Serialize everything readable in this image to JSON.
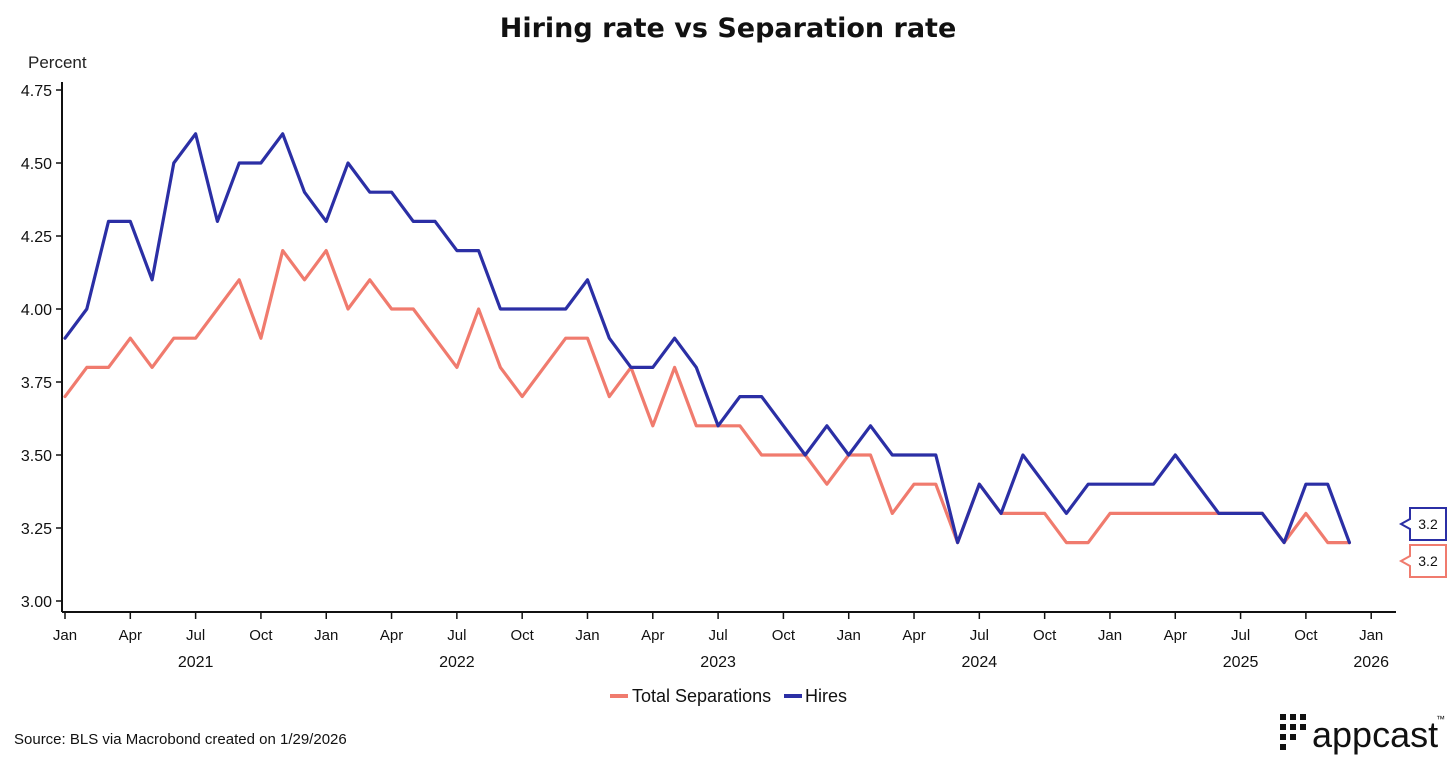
{
  "chart_data": {
    "type": "line",
    "title": "Hiring rate vs Separation rate",
    "ylabel": "Percent",
    "xlabel": "",
    "ylim": [
      3.0,
      4.75
    ],
    "yticks": [
      "3.00",
      "3.25",
      "3.50",
      "3.75",
      "4.00",
      "4.25",
      "4.50",
      "4.75"
    ],
    "x_start": "2021-01",
    "x_end": "2026-01",
    "x_month_ticks": [
      {
        "index": 0,
        "label": "Jan"
      },
      {
        "index": 3,
        "label": "Apr"
      },
      {
        "index": 6,
        "label": "Jul"
      },
      {
        "index": 9,
        "label": "Oct"
      },
      {
        "index": 12,
        "label": "Jan"
      },
      {
        "index": 15,
        "label": "Apr"
      },
      {
        "index": 18,
        "label": "Jul"
      },
      {
        "index": 21,
        "label": "Oct"
      },
      {
        "index": 24,
        "label": "Jan"
      },
      {
        "index": 27,
        "label": "Apr"
      },
      {
        "index": 30,
        "label": "Jul"
      },
      {
        "index": 33,
        "label": "Oct"
      },
      {
        "index": 36,
        "label": "Jan"
      },
      {
        "index": 39,
        "label": "Apr"
      },
      {
        "index": 42,
        "label": "Jul"
      },
      {
        "index": 45,
        "label": "Oct"
      },
      {
        "index": 48,
        "label": "Jan"
      },
      {
        "index": 51,
        "label": "Apr"
      },
      {
        "index": 54,
        "label": "Jul"
      },
      {
        "index": 57,
        "label": "Oct"
      },
      {
        "index": 60,
        "label": "Jan"
      }
    ],
    "x_year_labels": [
      {
        "index": 6,
        "label": "2021"
      },
      {
        "index": 18,
        "label": "2022"
      },
      {
        "index": 30,
        "label": "2023"
      },
      {
        "index": 42,
        "label": "2024"
      },
      {
        "index": 54,
        "label": "2025"
      },
      {
        "index": 60,
        "label": "2026"
      }
    ],
    "series": [
      {
        "name": "Hires",
        "color": "#2b2fa5",
        "values": [
          3.9,
          4.0,
          4.3,
          4.3,
          4.1,
          4.5,
          4.6,
          4.3,
          4.5,
          4.5,
          4.6,
          4.4,
          4.3,
          4.5,
          4.4,
          4.4,
          4.3,
          4.3,
          4.2,
          4.2,
          4.0,
          4.0,
          4.0,
          4.0,
          4.1,
          3.9,
          3.8,
          3.8,
          3.9,
          3.8,
          3.6,
          3.7,
          3.7,
          3.6,
          3.5,
          3.6,
          3.5,
          3.6,
          3.5,
          3.5,
          3.5,
          3.2,
          3.4,
          3.3,
          3.5,
          3.4,
          3.3,
          3.4,
          3.4,
          3.4,
          3.4,
          3.5,
          3.4,
          3.3,
          3.3,
          3.3,
          3.2,
          3.4,
          3.4,
          3.2
        ],
        "last_label": "3.2"
      },
      {
        "name": "Total Separations",
        "color": "#f07b6e",
        "values": [
          3.7,
          3.8,
          3.8,
          3.9,
          3.8,
          3.9,
          3.9,
          4.0,
          4.1,
          3.9,
          4.2,
          4.1,
          4.2,
          4.0,
          4.1,
          4.0,
          4.0,
          3.9,
          3.8,
          4.0,
          3.8,
          3.7,
          3.8,
          3.9,
          3.9,
          3.7,
          3.8,
          3.6,
          3.8,
          3.6,
          3.6,
          3.6,
          3.5,
          3.5,
          3.5,
          3.4,
          3.5,
          3.5,
          3.3,
          3.4,
          3.4,
          3.2,
          3.4,
          3.3,
          3.3,
          3.3,
          3.2,
          3.2,
          3.3,
          3.3,
          3.3,
          3.3,
          3.3,
          3.3,
          3.3,
          3.3,
          3.2,
          3.3,
          3.2,
          3.2
        ],
        "last_label": "3.2"
      }
    ],
    "legend": [
      "Total Separations",
      "Hires"
    ],
    "legend_position": "bottom-center"
  },
  "footer": {
    "source": "Source: BLS via Macrobond created on 1/29/2026",
    "brand": "appcast",
    "brand_mark": "™"
  }
}
